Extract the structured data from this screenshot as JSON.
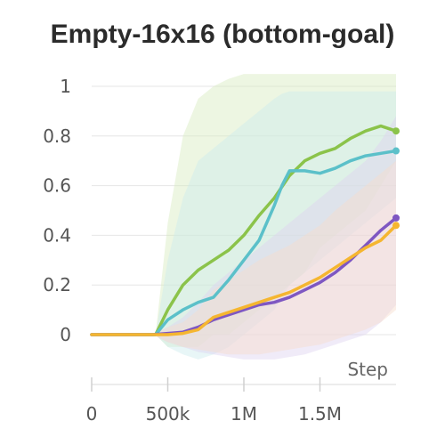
{
  "chart_data": {
    "type": "line",
    "title": "Empty-16x16 (bottom-goal)",
    "xlabel": "Step",
    "ylabel": "",
    "xlim": [
      0,
      2000000
    ],
    "ylim": [
      0,
      1
    ],
    "x_ticks": [
      0,
      500000,
      1000000,
      1500000
    ],
    "x_tick_labels": [
      "0",
      "500k",
      "1M",
      "1.5M"
    ],
    "y_ticks": [
      0,
      0.2,
      0.4,
      0.6,
      0.8,
      1
    ],
    "y_tick_labels": [
      "0",
      "0.2",
      "0.4",
      "0.6",
      "0.8",
      "1"
    ],
    "grid": true,
    "legend": "none",
    "series": [
      {
        "color": "#8bc34a",
        "band_color": "#d6ecbf",
        "x": [
          0,
          250000,
          420000,
          500000,
          600000,
          700000,
          800000,
          900000,
          1000000,
          1100000,
          1200000,
          1300000,
          1400000,
          1500000,
          1600000,
          1700000,
          1800000,
          1900000,
          2000000
        ],
        "y": [
          0,
          0,
          0,
          0.1,
          0.2,
          0.26,
          0.3,
          0.34,
          0.4,
          0.48,
          0.55,
          0.64,
          0.7,
          0.73,
          0.75,
          0.79,
          0.82,
          0.84,
          0.82
        ],
        "lower": [
          0,
          0,
          0,
          -0.05,
          -0.05,
          -0.05,
          0,
          0,
          0.05,
          0.1,
          0.15,
          0.2,
          0.25,
          0.35,
          0.4,
          0.45,
          0.5,
          0.6,
          0.7
        ],
        "upper": [
          0,
          0,
          0,
          0.45,
          0.8,
          0.95,
          1.0,
          1.03,
          1.05,
          1.05,
          1.05,
          1.05,
          1.05,
          1.05,
          1.05,
          1.05,
          1.05,
          1.05,
          1.05
        ]
      },
      {
        "color": "#5bc0c9",
        "band_color": "#cdebee",
        "x": [
          0,
          250000,
          420000,
          500000,
          600000,
          700000,
          800000,
          900000,
          1000000,
          1100000,
          1200000,
          1250000,
          1300000,
          1400000,
          1500000,
          1600000,
          1700000,
          1800000,
          1900000,
          2000000
        ],
        "y": [
          0,
          0,
          0,
          0.06,
          0.1,
          0.13,
          0.15,
          0.22,
          0.3,
          0.38,
          0.52,
          0.6,
          0.66,
          0.66,
          0.65,
          0.67,
          0.7,
          0.72,
          0.73,
          0.74
        ],
        "lower": [
          0,
          0,
          0,
          -0.05,
          -0.08,
          -0.1,
          -0.08,
          -0.05,
          0,
          0.05,
          0.1,
          0.15,
          0.2,
          0.25,
          0.3,
          0.35,
          0.4,
          0.45,
          0.5,
          0.55
        ],
        "upper": [
          0,
          0,
          0,
          0.3,
          0.55,
          0.7,
          0.75,
          0.8,
          0.85,
          0.9,
          0.95,
          0.97,
          0.98,
          0.98,
          0.98,
          0.98,
          0.98,
          0.98,
          0.98,
          0.98
        ]
      },
      {
        "color": "#7e57c2",
        "band_color": "#ddd3ef",
        "x": [
          0,
          250000,
          400000,
          500000,
          600000,
          700000,
          800000,
          900000,
          1000000,
          1100000,
          1200000,
          1300000,
          1400000,
          1500000,
          1600000,
          1700000,
          1800000,
          1900000,
          2000000
        ],
        "y": [
          0,
          0,
          0,
          0.005,
          0.01,
          0.03,
          0.06,
          0.08,
          0.1,
          0.12,
          0.13,
          0.15,
          0.18,
          0.21,
          0.25,
          0.3,
          0.36,
          0.42,
          0.47
        ],
        "lower": [
          0,
          0,
          0,
          -0.03,
          -0.05,
          -0.07,
          -0.08,
          -0.09,
          -0.1,
          -0.1,
          -0.1,
          -0.09,
          -0.08,
          -0.06,
          -0.04,
          -0.02,
          0,
          0.05,
          0.12
        ],
        "upper": [
          0,
          0,
          0,
          0.03,
          0.07,
          0.13,
          0.2,
          0.25,
          0.3,
          0.35,
          0.4,
          0.45,
          0.5,
          0.55,
          0.6,
          0.65,
          0.7,
          0.78,
          0.88
        ]
      },
      {
        "color": "#f5b630",
        "band_color": "#f6dccb",
        "x": [
          0,
          250000,
          400000,
          500000,
          600000,
          700000,
          800000,
          900000,
          1000000,
          1100000,
          1200000,
          1300000,
          1400000,
          1500000,
          1600000,
          1700000,
          1800000,
          1900000,
          2000000
        ],
        "y": [
          0,
          0,
          0,
          0,
          0.005,
          0.02,
          0.07,
          0.09,
          0.11,
          0.13,
          0.15,
          0.17,
          0.2,
          0.23,
          0.27,
          0.31,
          0.35,
          0.38,
          0.44
        ],
        "lower": [
          0,
          0,
          0,
          -0.03,
          -0.05,
          -0.06,
          -0.07,
          -0.08,
          -0.08,
          -0.08,
          -0.07,
          -0.06,
          -0.05,
          -0.04,
          -0.02,
          0,
          0.02,
          0.05,
          0.1
        ],
        "upper": [
          0,
          0,
          0,
          0.03,
          0.05,
          0.1,
          0.18,
          0.22,
          0.26,
          0.3,
          0.33,
          0.36,
          0.4,
          0.44,
          0.5,
          0.55,
          0.6,
          0.65,
          0.7
        ]
      }
    ]
  }
}
